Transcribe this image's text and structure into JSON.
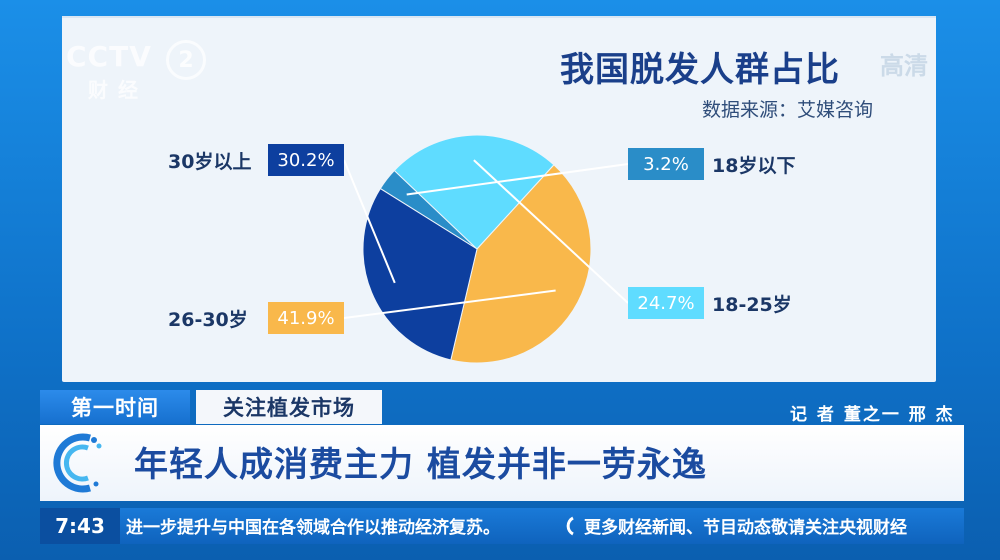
{
  "channel": {
    "logo_text": "CCTV",
    "logo_number": "2",
    "logo_sub": "财经",
    "watermark": "高清"
  },
  "chart_data": {
    "type": "pie",
    "title": "我国脱发人群占比",
    "subtitle": "数据来源：艾媒咨询",
    "slices": [
      {
        "label": "18岁以下",
        "value": 3.2,
        "display": "3.2%",
        "color": "#2a8dc8"
      },
      {
        "label": "18-25岁",
        "value": 24.7,
        "display": "24.7%",
        "color": "#5fdcff"
      },
      {
        "label": "26-30岁",
        "value": 41.9,
        "display": "41.9%",
        "color": "#f9b84b"
      },
      {
        "label": "30岁以上",
        "value": 30.2,
        "display": "30.2%",
        "color": "#0d3f9f"
      }
    ],
    "legend": "callout labels"
  },
  "news": {
    "tag_primary": "第一时间",
    "tag_secondary": "关注植发市场",
    "reporter": "记 者 董之一 邢 杰",
    "headline": "年轻人成消费主力 植发并非一劳永逸",
    "time": "7:43",
    "ticker_items": [
      "进一步提升与中国在各领域合作以推动经济复苏。",
      "更多财经新闻、节目动态敬请关注央视财经"
    ]
  }
}
